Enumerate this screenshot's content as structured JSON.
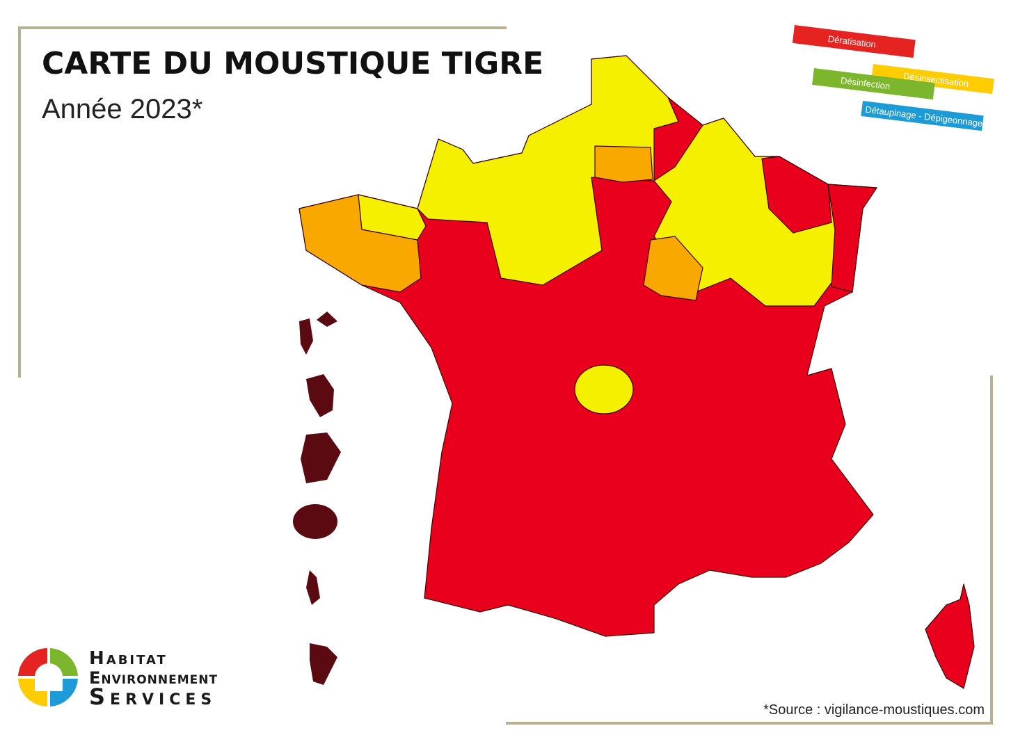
{
  "header": {
    "title": "CARTE DU MOUSTIQUE TIGRE",
    "subtitle": "Année 2023*"
  },
  "services": [
    "Dératisation",
    "Désinsectisation",
    "Désinfection",
    "Détaupinage - Dépigeonnage"
  ],
  "logo": {
    "lines": [
      "Habitat",
      "Environnement",
      "Services"
    ]
  },
  "source": "*Source : vigilance-moustiques.com"
}
